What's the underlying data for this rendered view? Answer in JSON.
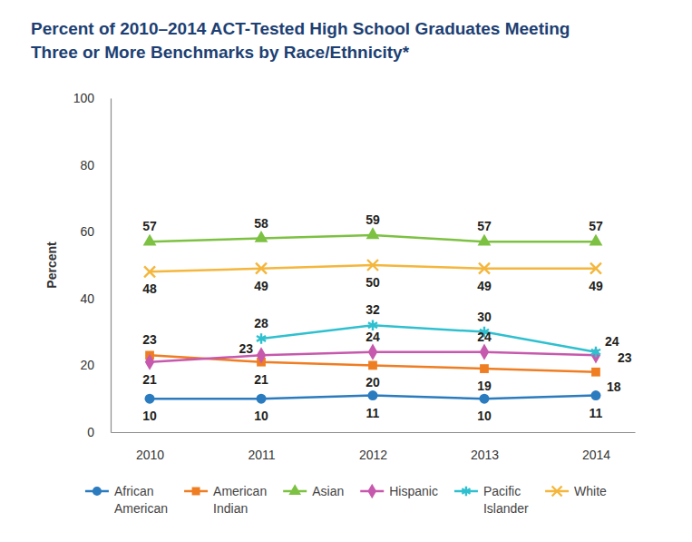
{
  "chart_data": {
    "type": "line",
    "title": "Percent of 2010–2014 ACT-Tested High School Graduates Meeting Three or More Benchmarks by Race/Ethnicity*",
    "ylabel": "Percent",
    "categories": [
      "2010",
      "2011",
      "2012",
      "2013",
      "2014"
    ],
    "ylim": [
      0,
      100
    ],
    "yticks": [
      0,
      20,
      40,
      60,
      80,
      100
    ],
    "grid": false,
    "data_labels": true,
    "legend": "bottom",
    "series": [
      {
        "name": "African American",
        "color": "#2b7bbf",
        "marker": "circle",
        "values": [
          10,
          10,
          11,
          10,
          11
        ]
      },
      {
        "name": "American Indian",
        "color": "#ef7d22",
        "marker": "square",
        "values": [
          23,
          21,
          20,
          19,
          18
        ]
      },
      {
        "name": "Asian",
        "color": "#7dc142",
        "marker": "triangle",
        "values": [
          57,
          58,
          59,
          57,
          57
        ]
      },
      {
        "name": "Hispanic",
        "color": "#c659ad",
        "marker": "diamond",
        "values": [
          21,
          23,
          24,
          24,
          23
        ]
      },
      {
        "name": "Pacific Islander",
        "color": "#2fc0cf",
        "marker": "asterisk",
        "values": [
          null,
          28,
          32,
          30,
          24
        ]
      },
      {
        "name": "White",
        "color": "#f4b63c",
        "marker": "x",
        "values": [
          48,
          49,
          50,
          49,
          49
        ]
      }
    ]
  }
}
